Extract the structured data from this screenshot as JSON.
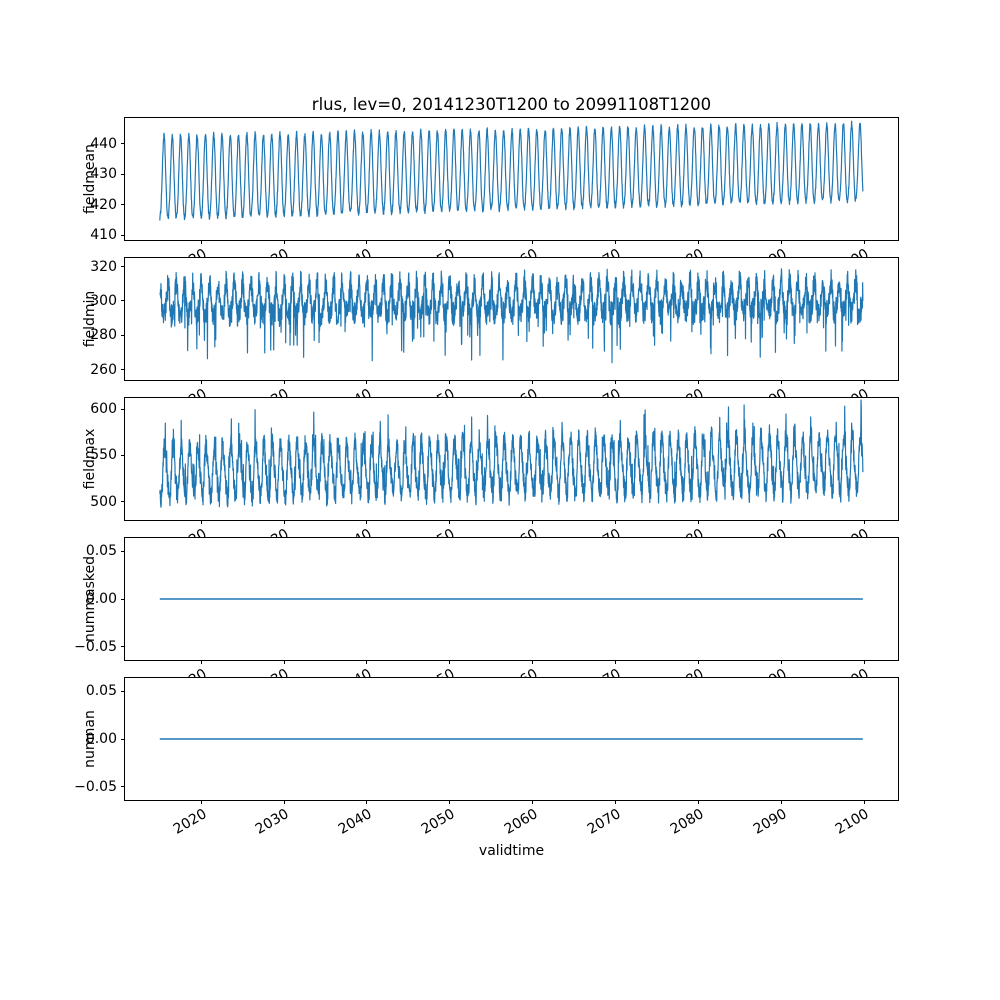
{
  "figure": {
    "title": "rlus, lev=0, 20141230T1200 to 20991108T1200",
    "xlabel": "validtime",
    "line_color": "#1f77b4",
    "background_color": "#ffffff",
    "xlim": [
      2010.8,
      2104.1
    ],
    "xticks": [
      {
        "v": 2020,
        "label": "2020"
      },
      {
        "v": 2030,
        "label": "2030"
      },
      {
        "v": 2040,
        "label": "2040"
      },
      {
        "v": 2050,
        "label": "2050"
      },
      {
        "v": 2060,
        "label": "2060"
      },
      {
        "v": 2070,
        "label": "2070"
      },
      {
        "v": 2080,
        "label": "2080"
      },
      {
        "v": 2090,
        "label": "2090"
      },
      {
        "v": 2100,
        "label": "2100"
      }
    ]
  },
  "chart_data": [
    {
      "type": "line",
      "name": "fieldmean",
      "ylabel": "fieldmean",
      "ylim": [
        408.5,
        448.5
      ],
      "grid": false,
      "x_range": [
        2015.0,
        2099.86
      ],
      "yticks": [
        {
          "v": 410,
          "label": "410"
        },
        {
          "v": 420,
          "label": "420"
        },
        {
          "v": 430,
          "label": "430"
        },
        {
          "v": 440,
          "label": "440"
        }
      ],
      "series": [
        {
          "name": "fieldmean",
          "color": "#1f77b4",
          "gen": {
            "t0": 2015.0,
            "t1": 2099.86,
            "per_year": 36,
            "base": 428.0,
            "trend": 5.0,
            "amp": 13.5,
            "amp_trend": -1.0,
            "amp2": 1.2,
            "noise": 0.9,
            "phase": 4.7,
            "spike_prob": 0,
            "spike_mag": 0,
            "upspike_prob": 0,
            "upspike_mag": 0
          }
        }
      ]
    },
    {
      "type": "line",
      "name": "fieldmin",
      "ylabel": "fieldmin",
      "ylim": [
        254,
        325
      ],
      "grid": false,
      "x_range": [
        2015.0,
        2099.86
      ],
      "yticks": [
        {
          "v": 260,
          "label": "260"
        },
        {
          "v": 280,
          "label": "280"
        },
        {
          "v": 300,
          "label": "300"
        },
        {
          "v": 320,
          "label": "320"
        }
      ],
      "series": [
        {
          "name": "fieldmin",
          "color": "#1f77b4",
          "gen": {
            "t0": 2015.0,
            "t1": 2099.86,
            "per_year": 36,
            "base": 299.0,
            "trend": 2.0,
            "amp": 9.0,
            "amp_trend": 0,
            "amp2": 2.2,
            "noise": 7.0,
            "phase": 1.6,
            "spike_prob": 0.045,
            "spike_mag": 26,
            "upspike_prob": 0,
            "upspike_mag": 0
          }
        }
      ]
    },
    {
      "type": "line",
      "name": "fieldmax",
      "ylabel": "fieldmax",
      "ylim": [
        480,
        612
      ],
      "grid": false,
      "x_range": [
        2015.0,
        2099.86
      ],
      "yticks": [
        {
          "v": 500,
          "label": "500"
        },
        {
          "v": 550,
          "label": "550"
        },
        {
          "v": 600,
          "label": "600"
        }
      ],
      "series": [
        {
          "name": "fieldmax",
          "color": "#1f77b4",
          "gen": {
            "t0": 2015.0,
            "t1": 2099.86,
            "per_year": 36,
            "base": 531.0,
            "trend": 9.0,
            "amp": 26.0,
            "amp_trend": 4.0,
            "amp2": 5.0,
            "noise": 12.0,
            "phase": 4.0,
            "spike_prob": 0,
            "spike_mag": 0,
            "upspike_prob": 0.05,
            "upspike_mag": 32
          }
        }
      ]
    },
    {
      "type": "line",
      "name": "nummasked",
      "ylabel": "nummasked",
      "ylim": [
        -0.064,
        0.064
      ],
      "grid": false,
      "x_range": [
        2015.0,
        2099.86
      ],
      "yticks": [
        {
          "v": -0.05,
          "label": "−0.05"
        },
        {
          "v": 0,
          "label": "0.00"
        },
        {
          "v": 0.05,
          "label": "0.05"
        }
      ],
      "series": [
        {
          "name": "nummasked",
          "color": "#1f77b4",
          "constant": 0,
          "t0": 2015.0,
          "t1": 2099.86
        }
      ]
    },
    {
      "type": "line",
      "name": "numnan",
      "ylabel": "numnan",
      "ylim": [
        -0.064,
        0.064
      ],
      "grid": false,
      "x_range": [
        2015.0,
        2099.86
      ],
      "yticks": [
        {
          "v": -0.05,
          "label": "−0.05"
        },
        {
          "v": 0,
          "label": "0.00"
        },
        {
          "v": 0.05,
          "label": "0.05"
        }
      ],
      "series": [
        {
          "name": "numnan",
          "color": "#1f77b4",
          "constant": 0,
          "t0": 2015.0,
          "t1": 2099.86
        }
      ]
    }
  ]
}
